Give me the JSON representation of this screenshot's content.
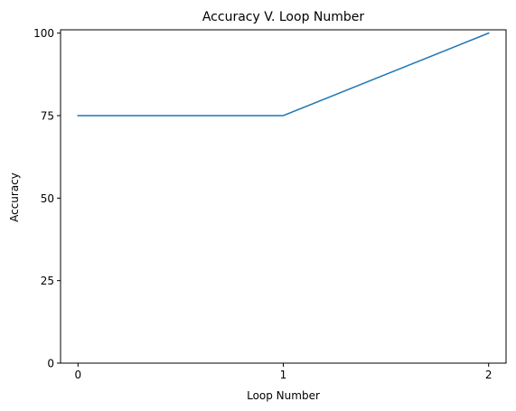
{
  "chart_data": {
    "type": "line",
    "title": "Accuracy V. Loop Number",
    "xlabel": "Loop Number",
    "ylabel": "Accuracy",
    "x": [
      0,
      1,
      2
    ],
    "xlim": [
      -0.085,
      2.085
    ],
    "ylim": [
      0,
      101
    ],
    "xticks": [
      0,
      1,
      2
    ],
    "yticks": [
      0,
      25,
      50,
      75,
      100
    ],
    "grid": false,
    "series": [
      {
        "values": [
          75,
          75,
          100
        ],
        "color": "#1f77b4"
      }
    ]
  }
}
